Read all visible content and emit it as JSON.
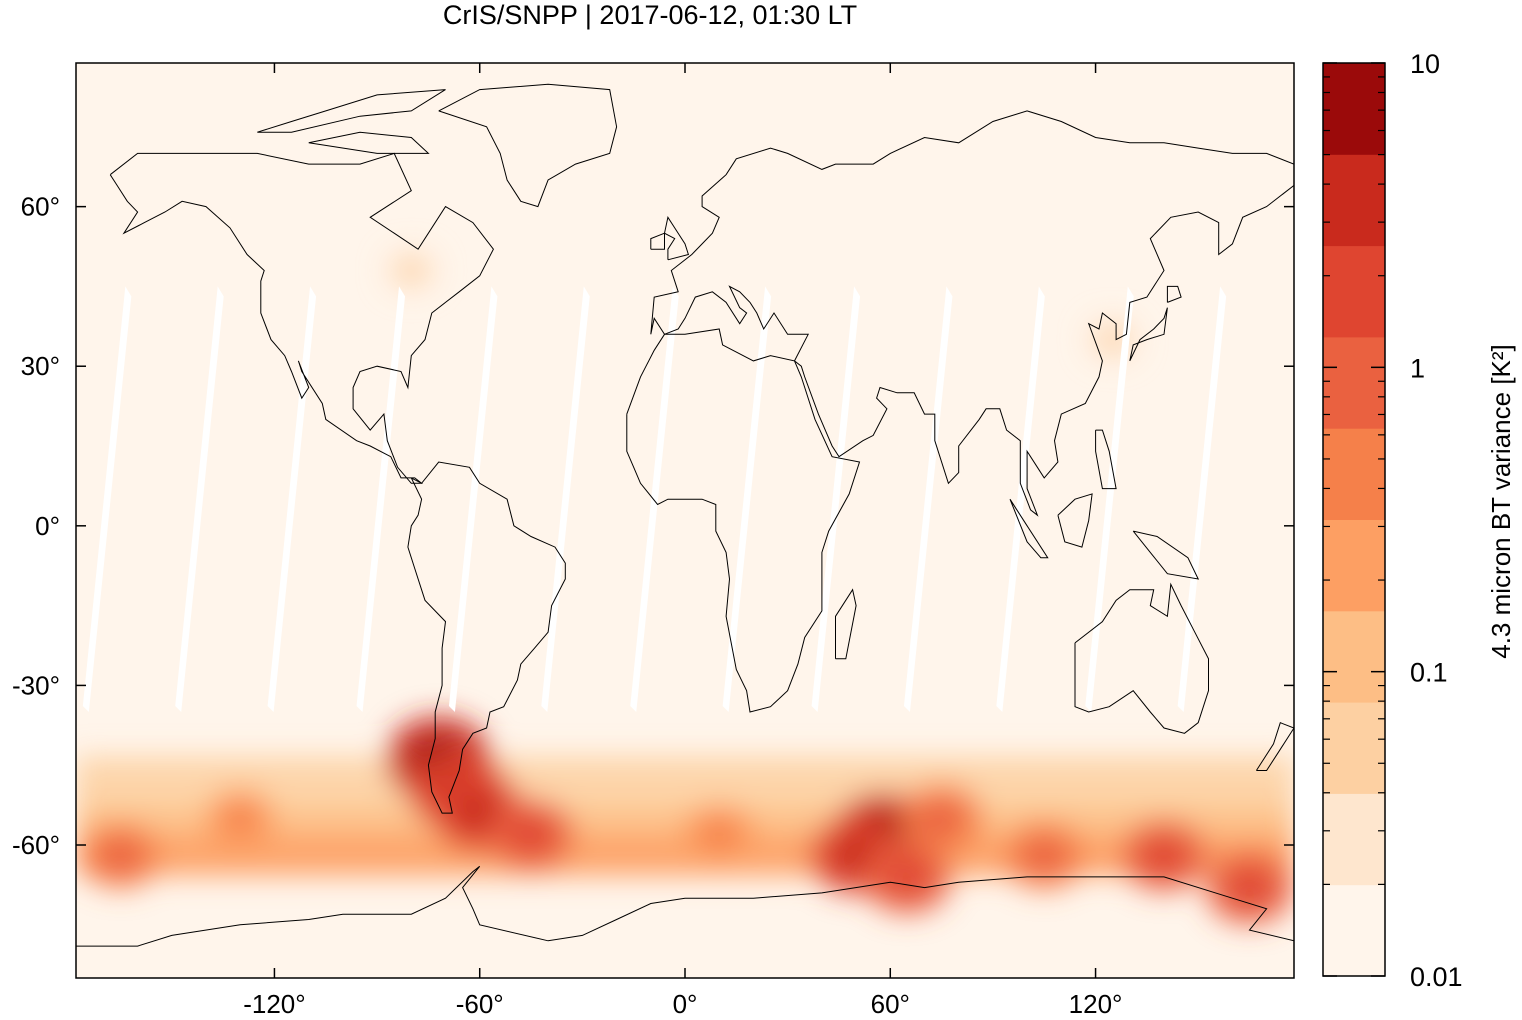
{
  "title": "CrIS/SNPP | 2017-06-12, 01:30 LT",
  "colors": {
    "ocean_background": "#fff5eb",
    "coastline": "#000000",
    "swath_gap": "#ffffff",
    "scale": [
      "#fff5eb",
      "#fee6ce",
      "#fdd0a2",
      "#fdbe85",
      "#fd9f63",
      "#f5804a",
      "#ea6140",
      "#df4530",
      "#c92a1d",
      "#9b0a0a"
    ]
  },
  "chart_data": {
    "type": "heatmap",
    "title": "CrIS/SNPP | 2017-06-12, 01:30 LT",
    "projection": "equirectangular",
    "xlim": [
      -178,
      178
    ],
    "ylim": [
      -85,
      87
    ],
    "x_ticks": [
      -120,
      -60,
      0,
      60,
      120
    ],
    "x_tick_labels": [
      "-120°",
      "-60°",
      "0°",
      "60°",
      "120°"
    ],
    "y_ticks": [
      60,
      30,
      0,
      -30,
      -60
    ],
    "y_tick_labels": [
      "60°",
      "30°",
      "0°",
      "-30°",
      "-60°"
    ],
    "colorbar": {
      "label": "4.3 micron BT variance [K²]",
      "scale": "log",
      "range": [
        0.01,
        10
      ],
      "tick_values": [
        10,
        1,
        0.1,
        0.01
      ],
      "tick_labels": [
        "10",
        "1",
        "0.1",
        "0.01"
      ],
      "levels_per_decade": 3
    },
    "hotspots": [
      {
        "lon": -72,
        "lat": -44,
        "value": 10
      },
      {
        "lon": -66,
        "lat": -50,
        "value": 5
      },
      {
        "lon": -60,
        "lat": -54,
        "value": 3
      },
      {
        "lon": -45,
        "lat": -58,
        "value": 1.5
      },
      {
        "lon": 58,
        "lat": -58,
        "value": 6
      },
      {
        "lon": 50,
        "lat": -62,
        "value": 3
      },
      {
        "lon": 65,
        "lat": -66,
        "value": 2
      },
      {
        "lon": 75,
        "lat": -55,
        "value": 1.2
      },
      {
        "lon": 140,
        "lat": -62,
        "value": 1.5
      },
      {
        "lon": 165,
        "lat": -68,
        "value": 2
      },
      {
        "lon": 105,
        "lat": -62,
        "value": 1
      },
      {
        "lon": -165,
        "lat": -62,
        "value": 0.8
      },
      {
        "lon": 10,
        "lat": -58,
        "value": 0.6
      },
      {
        "lon": -130,
        "lat": -55,
        "value": 0.4
      },
      {
        "lon": -80,
        "lat": 48,
        "value": 0.05
      },
      {
        "lon": 125,
        "lat": 35,
        "value": 0.05
      }
    ]
  }
}
